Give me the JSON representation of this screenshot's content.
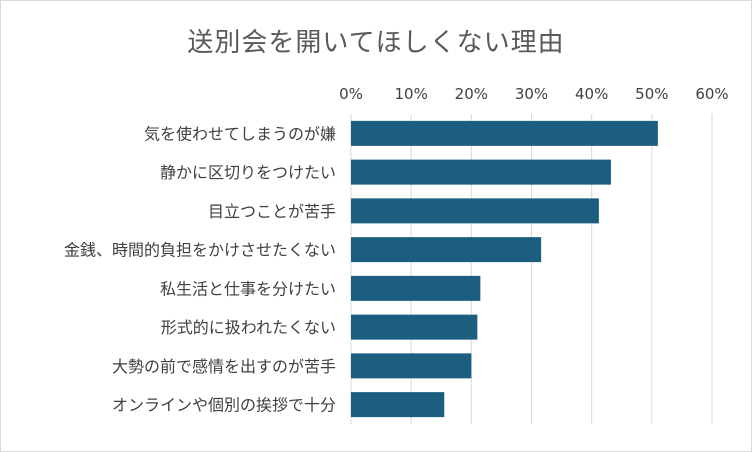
{
  "chart_data": {
    "type": "bar",
    "orientation": "horizontal",
    "title": "送別会を開いてほしくない理由",
    "xlabel": "",
    "ylabel": "",
    "xlim": [
      0,
      60
    ],
    "x_ticks": [
      "0%",
      "10%",
      "20%",
      "30%",
      "40%",
      "50%",
      "60%"
    ],
    "x_axis_position": "top",
    "grid": true,
    "legend": "none",
    "bar_color": "#1b5e80",
    "categories": [
      "気を使わせてしまうのが嫌",
      "静かに区切りをつけたい",
      "目立つことが苦手",
      "金銭、時間的負担をかけさせたくない",
      "私生活と仕事を分けたい",
      "形式的に扱われたくない",
      "大勢の前で感情を出すのが苦手",
      "オンラインや個別の挨拶で十分"
    ],
    "values": [
      51.0,
      43.2,
      41.2,
      31.6,
      21.5,
      21.0,
      20.0,
      15.5
    ]
  }
}
